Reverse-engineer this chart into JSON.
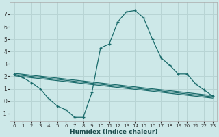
{
  "xlabel": "Humidex (Indice chaleur)",
  "background_color": "#cde8e8",
  "grid_color": "#b8d4d4",
  "line_color": "#1a6b6b",
  "xlim": [
    -0.5,
    23.5
  ],
  "ylim": [
    -1.6,
    8.0
  ],
  "yticks": [
    -1,
    0,
    1,
    2,
    3,
    4,
    5,
    6,
    7
  ],
  "xticks": [
    0,
    1,
    2,
    3,
    4,
    5,
    6,
    7,
    8,
    9,
    10,
    11,
    12,
    13,
    14,
    15,
    16,
    17,
    18,
    19,
    20,
    21,
    22,
    23
  ],
  "main_x": [
    0,
    1,
    2,
    3,
    4,
    5,
    6,
    7,
    8,
    9,
    10,
    11,
    12,
    13,
    14,
    15,
    16,
    17,
    18,
    19,
    20,
    21,
    22,
    23
  ],
  "main_y": [
    2.2,
    1.9,
    1.5,
    1.0,
    0.2,
    -0.4,
    -0.7,
    -1.3,
    -1.3,
    0.7,
    4.3,
    4.6,
    6.4,
    7.2,
    7.3,
    6.7,
    5.0,
    3.5,
    2.9,
    2.2,
    2.2,
    1.4,
    0.9,
    0.4
  ],
  "line1_x": [
    0,
    23
  ],
  "line1_y": [
    2.25,
    0.45
  ],
  "line2_x": [
    0,
    23
  ],
  "line2_y": [
    2.15,
    0.35
  ],
  "line3_x": [
    0,
    23
  ],
  "line3_y": [
    2.05,
    0.25
  ]
}
